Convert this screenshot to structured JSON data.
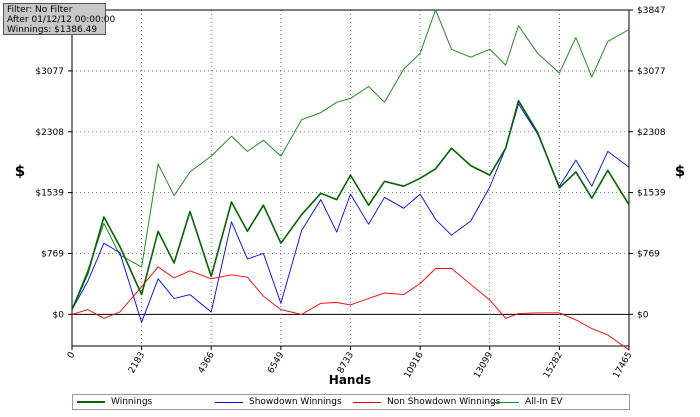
{
  "info_box": {
    "filter": "Filter: No Filter",
    "after": "After 01/12/12 00:00:00",
    "winnings": "Winnings: $1386.49"
  },
  "colors": {
    "winnings": "#006400",
    "showdown": "#0000ff",
    "non_showdown": "#ff0000",
    "allin_ev": "#228b22"
  },
  "chart_data": {
    "type": "line",
    "xlabel": "Hands",
    "ylabel": "$",
    "xlim": [
      0,
      17465
    ],
    "ylim": [
      -400,
      3847
    ],
    "x_ticks": [
      "0",
      "2183",
      "4366",
      "6549",
      "8733",
      "10916",
      "13099",
      "15282",
      "17465"
    ],
    "y_ticks": [
      "$0",
      "$769",
      "$1539",
      "$2308",
      "$3077",
      "$3847"
    ],
    "y_tick_values": [
      0,
      769,
      1539,
      2308,
      3077,
      3847
    ],
    "grid": true,
    "legend_position": "bottom",
    "series": [
      {
        "name": "Winnings",
        "color": "#006400",
        "x": [
          0,
          500,
          1000,
          1500,
          2183,
          2700,
          3200,
          3700,
          4366,
          5000,
          5500,
          6000,
          6549,
          7200,
          7800,
          8300,
          8733,
          9300,
          9800,
          10400,
          10916,
          11400,
          11900,
          12500,
          13099,
          13600,
          14000,
          14600,
          15282,
          15800,
          16300,
          16800,
          17465
        ],
        "values": [
          60,
          520,
          1230,
          860,
          250,
          1050,
          650,
          1300,
          480,
          1420,
          1050,
          1380,
          900,
          1260,
          1530,
          1450,
          1760,
          1380,
          1680,
          1620,
          1720,
          1840,
          2100,
          1880,
          1760,
          2100,
          2700,
          2300,
          1600,
          1800,
          1470,
          1820,
          1386
        ]
      },
      {
        "name": "Showdown Winnings",
        "color": "#0000ff",
        "x": [
          0,
          500,
          1000,
          1500,
          2183,
          2700,
          3200,
          3700,
          4366,
          5000,
          5500,
          6000,
          6549,
          7200,
          7800,
          8300,
          8733,
          9300,
          9800,
          10400,
          10916,
          11400,
          11900,
          12500,
          13099,
          13600,
          14000,
          14600,
          15282,
          15800,
          16300,
          16800,
          17465
        ],
        "values": [
          60,
          420,
          900,
          780,
          -100,
          450,
          200,
          250,
          30,
          1170,
          700,
          770,
          140,
          1060,
          1450,
          1040,
          1520,
          1140,
          1480,
          1340,
          1520,
          1200,
          1000,
          1180,
          1610,
          2100,
          2660,
          2280,
          1620,
          1950,
          1620,
          2060,
          1860
        ]
      },
      {
        "name": "Non Showdown Winnings",
        "color": "#ff0000",
        "x": [
          0,
          500,
          1000,
          1500,
          2183,
          2700,
          3200,
          3700,
          4366,
          5000,
          5500,
          6000,
          6549,
          7200,
          7800,
          8300,
          8733,
          9300,
          9800,
          10400,
          10916,
          11400,
          11900,
          12500,
          13099,
          13600,
          14000,
          14600,
          15282,
          15800,
          16300,
          16800,
          17465
        ],
        "values": [
          0,
          60,
          -50,
          30,
          350,
          600,
          460,
          550,
          450,
          500,
          470,
          230,
          60,
          0,
          140,
          150,
          120,
          200,
          270,
          250,
          390,
          580,
          580,
          380,
          180,
          -50,
          10,
          20,
          20,
          -70,
          -180,
          -260,
          -450
        ]
      },
      {
        "name": "All-In EV",
        "color": "#228b22",
        "x": [
          0,
          500,
          1000,
          1500,
          2183,
          2700,
          3200,
          3700,
          4366,
          5000,
          5500,
          6000,
          6549,
          7200,
          7800,
          8300,
          8733,
          9300,
          9800,
          10400,
          10916,
          11400,
          11900,
          12500,
          13099,
          13600,
          14000,
          14600,
          15282,
          15800,
          16300,
          16800,
          17465
        ],
        "values": [
          60,
          560,
          1150,
          750,
          600,
          1900,
          1500,
          1800,
          2000,
          2250,
          2060,
          2200,
          2000,
          2460,
          2550,
          2680,
          2730,
          2880,
          2680,
          3100,
          3300,
          3850,
          3350,
          3250,
          3350,
          3150,
          3650,
          3300,
          3050,
          3500,
          3000,
          3450,
          3600
        ]
      }
    ]
  }
}
